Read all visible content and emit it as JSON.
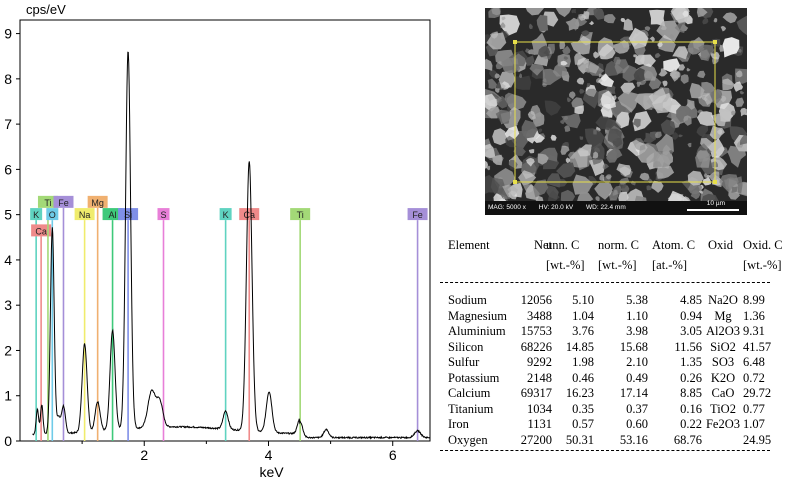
{
  "chart_data": {
    "type": "line",
    "ylabel": "cps/eV",
    "xlabel": "keV",
    "xlim": [
      0,
      6.6
    ],
    "ylim": [
      0,
      9.3
    ],
    "xticks": [
      "2",
      "4",
      "6"
    ],
    "yticks": [
      "0",
      "1",
      "2",
      "3",
      "4",
      "5",
      "6",
      "7",
      "8",
      "9"
    ],
    "peaks": [
      {
        "x": 0.28,
        "y": 0.55,
        "w": 0.02
      },
      {
        "x": 0.35,
        "y": 0.65,
        "w": 0.02
      },
      {
        "x": 0.52,
        "y": 4.55,
        "w": 0.03
      },
      {
        "x": 0.62,
        "y": 0.35,
        "w": 0.03
      },
      {
        "x": 0.7,
        "y": 0.6,
        "w": 0.03
      },
      {
        "x": 1.04,
        "y": 1.95,
        "w": 0.04
      },
      {
        "x": 1.25,
        "y": 0.65,
        "w": 0.04
      },
      {
        "x": 1.49,
        "y": 2.2,
        "w": 0.04
      },
      {
        "x": 1.74,
        "y": 8.35,
        "w": 0.04
      },
      {
        "x": 2.12,
        "y": 0.8,
        "w": 0.06
      },
      {
        "x": 2.25,
        "y": 0.55,
        "w": 0.05
      },
      {
        "x": 3.31,
        "y": 0.4,
        "w": 0.04
      },
      {
        "x": 3.69,
        "y": 5.95,
        "w": 0.045
      },
      {
        "x": 4.01,
        "y": 0.9,
        "w": 0.045
      },
      {
        "x": 4.51,
        "y": 0.35,
        "w": 0.04
      },
      {
        "x": 4.93,
        "y": 0.18,
        "w": 0.04
      },
      {
        "x": 6.4,
        "y": 0.15,
        "w": 0.05
      }
    ],
    "element_lines": [
      {
        "label": "K",
        "x": 0.26,
        "top": 4.88,
        "color": "#5fd3c0"
      },
      {
        "label": "Ca",
        "x": 0.34,
        "top": 4.52,
        "color": "#ef8a8a"
      },
      {
        "label": "Ti",
        "x": 0.45,
        "top": 5.15,
        "color": "#a3d977"
      },
      {
        "label": "O",
        "x": 0.52,
        "top": 4.88,
        "color": "#6fcbe8"
      },
      {
        "label": "Fe",
        "x": 0.7,
        "top": 5.15,
        "color": "#a58fd8"
      },
      {
        "label": "Na",
        "x": 1.04,
        "top": 4.88,
        "color": "#f0ec6c"
      },
      {
        "label": "Mg",
        "x": 1.25,
        "top": 5.15,
        "color": "#f0b070"
      },
      {
        "label": "Al",
        "x": 1.49,
        "top": 4.88,
        "color": "#3ec97a"
      },
      {
        "label": "Si",
        "x": 1.74,
        "top": 4.88,
        "color": "#7f8fe8"
      },
      {
        "label": "S",
        "x": 2.31,
        "top": 4.88,
        "color": "#e87fd8"
      },
      {
        "label": "K",
        "x": 3.31,
        "top": 4.88,
        "color": "#5fd3c0"
      },
      {
        "label": "Ca",
        "x": 3.69,
        "top": 4.88,
        "color": "#ef8a8a"
      },
      {
        "label": "Ti",
        "x": 4.51,
        "top": 4.88,
        "color": "#a3d977"
      },
      {
        "label": "Fe",
        "x": 6.4,
        "top": 4.88,
        "color": "#a58fd8"
      }
    ]
  },
  "sem_image": {
    "mag": "MAG: 5000 x",
    "hv": "HV: 20.0 kV",
    "wd": "WD: 22.4 mm",
    "scale": "10 µm"
  },
  "table": {
    "headers": {
      "element": "Element",
      "net": "Net",
      "unn": "unn. C",
      "norm": "norm. C",
      "atom": "Atom. C",
      "oxid": "Oxid",
      "oxidc": "Oxid. C"
    },
    "units": {
      "unn": "[wt.-%]",
      "norm": "[wt.-%]",
      "atom": "[at.-%]",
      "oxidc": "[wt.-%]"
    },
    "rows": [
      {
        "element": "Sodium",
        "net": "12056",
        "unn": "5.10",
        "norm": "5.38",
        "atom": "4.85",
        "oxid": "Na2O",
        "oxidc": "8.99"
      },
      {
        "element": "Magnesium",
        "net": "3488",
        "unn": "1.04",
        "norm": "1.10",
        "atom": "0.94",
        "oxid": "Mg",
        "oxidc": "1.36"
      },
      {
        "element": "Aluminium",
        "net": "15753",
        "unn": "3.76",
        "norm": "3.98",
        "atom": "3.05",
        "oxid": "Al2O3",
        "oxidc": "9.31"
      },
      {
        "element": "Silicon",
        "net": "68226",
        "unn": "14.85",
        "norm": "15.68",
        "atom": "11.56",
        "oxid": "SiO2",
        "oxidc": "41.57"
      },
      {
        "element": "Sulfur",
        "net": "9292",
        "unn": "1.98",
        "norm": "2.10",
        "atom": "1.35",
        "oxid": "SO3",
        "oxidc": "6.48"
      },
      {
        "element": "Potassium",
        "net": "2148",
        "unn": "0.46",
        "norm": "0.49",
        "atom": "0.26",
        "oxid": "K2O",
        "oxidc": "0.72"
      },
      {
        "element": "Calcium",
        "net": "69317",
        "unn": "16.23",
        "norm": "17.14",
        "atom": "8.85",
        "oxid": "CaO",
        "oxidc": "29.72"
      },
      {
        "element": "Titanium",
        "net": "1034",
        "unn": "0.35",
        "norm": "0.37",
        "atom": "0.16",
        "oxid": "TiO2",
        "oxidc": "0.77"
      },
      {
        "element": "Iron",
        "net": "1131",
        "unn": "0.57",
        "norm": "0.60",
        "atom": "0.22",
        "oxid": "Fe2O3",
        "oxidc": "1.07"
      },
      {
        "element": "Oxygen",
        "net": "27200",
        "unn": "50.31",
        "norm": "53.16",
        "atom": "68.76",
        "oxid": "",
        "oxidc": "24.95"
      }
    ]
  }
}
